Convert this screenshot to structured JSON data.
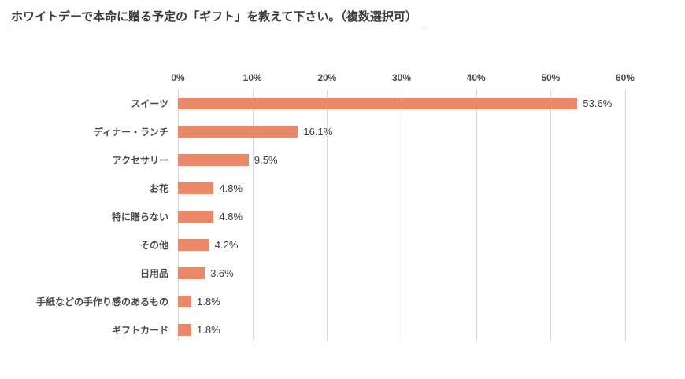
{
  "title": "ホワイトデーで本命に贈る予定の「ギフト」を教えて下さい。（複数選択可）",
  "chart_data": {
    "type": "bar",
    "orientation": "horizontal",
    "title": "ホワイトデーで本命に贈る予定の「ギフト」を教えて下さい。（複数選択可）",
    "categories": [
      "スイーツ",
      "ディナー・ランチ",
      "アクセサリー",
      "お花",
      "特に贈らない",
      "その他",
      "日用品",
      "手紙などの手作り感のあるもの",
      "ギフトカード"
    ],
    "values": [
      53.6,
      16.1,
      9.5,
      4.8,
      4.8,
      4.2,
      3.6,
      1.8,
      1.8
    ],
    "value_labels": [
      "53.6%",
      "16.1%",
      "9.5%",
      "4.8%",
      "4.8%",
      "4.2%",
      "3.6%",
      "1.8%",
      "1.8%"
    ],
    "xlim": [
      0,
      60
    ],
    "x_ticks": [
      "0%",
      "10%",
      "20%",
      "30%",
      "40%",
      "50%",
      "60%"
    ],
    "grid": true,
    "legend": false,
    "bar_color": "#E8896C",
    "grid_color": "#D9D9D9"
  }
}
